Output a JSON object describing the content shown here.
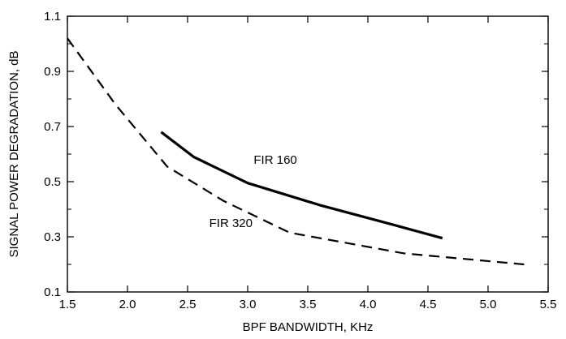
{
  "chart_data": {
    "type": "line",
    "title": "",
    "xlabel": "BPF BANDWIDTH, KHz",
    "ylabel": "SIGNAL POWER DEGRADATION, dB",
    "xlim": [
      1.5,
      5.5
    ],
    "ylim": [
      0.1,
      1.1
    ],
    "x_ticks": [
      1.5,
      2.0,
      2.5,
      3.0,
      3.5,
      4.0,
      4.5,
      5.0,
      5.5
    ],
    "x_tick_labels": [
      "1.5",
      "2.0",
      "2.5",
      "3.0",
      "3.5",
      "4.0",
      "4.5",
      "5.0",
      "5.5"
    ],
    "y_ticks": [
      0.1,
      0.3,
      0.5,
      0.7,
      0.9,
      1.1
    ],
    "y_tick_labels": [
      "0.1",
      "0.3",
      "0.5",
      "0.7",
      "0.9",
      "1.1"
    ],
    "grid": false,
    "legend": "none",
    "series": [
      {
        "name": "FIR 160",
        "style": "solid",
        "color": "#000000",
        "x": [
          2.28,
          2.55,
          3.0,
          3.6,
          4.2,
          4.62
        ],
        "y": [
          0.68,
          0.59,
          0.495,
          0.415,
          0.345,
          0.295
        ]
      },
      {
        "name": "FIR 320",
        "style": "dashed",
        "color": "#000000",
        "x": [
          1.5,
          1.9,
          2.33,
          2.8,
          3.35,
          4.3,
          5.3
        ],
        "y": [
          1.02,
          0.78,
          0.555,
          0.43,
          0.315,
          0.24,
          0.2
        ]
      }
    ]
  }
}
